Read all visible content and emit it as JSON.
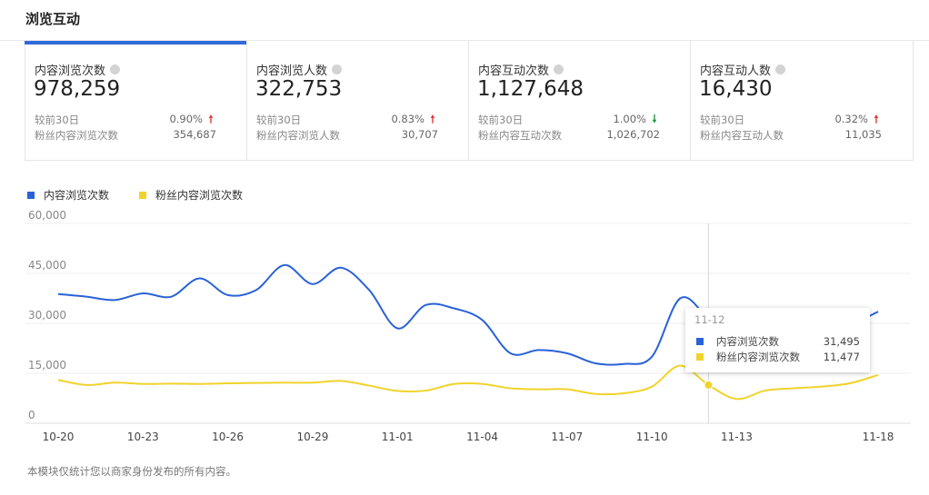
{
  "section_title": "浏览互动",
  "cards": [
    {
      "label": "内容浏览次数",
      "value": "978,259",
      "compare_label": "较前30日",
      "compare_value": "0.90%",
      "trend": "up",
      "sub_label": "粉丝内容浏览次数",
      "sub_value": "354,687"
    },
    {
      "label": "内容浏览人数",
      "value": "322,753",
      "compare_label": "较前30日",
      "compare_value": "0.83%",
      "trend": "up",
      "sub_label": "粉丝内容浏览人数",
      "sub_value": "30,707"
    },
    {
      "label": "内容互动次数",
      "value": "1,127,648",
      "compare_label": "较前30日",
      "compare_value": "1.00%",
      "trend": "down",
      "sub_label": "粉丝内容互动次数",
      "sub_value": "1,026,702"
    },
    {
      "label": "内容互动人数",
      "value": "16,430",
      "compare_label": "较前30日",
      "compare_value": "0.32%",
      "trend": "up",
      "sub_label": "粉丝内容互动人数",
      "sub_value": "11,035"
    }
  ],
  "colors": {
    "accent": "#2f6bd8",
    "series1": "#2962d8",
    "series2": "#f0d32a",
    "trend_up": "#e53935",
    "trend_down": "#1a9a3a"
  },
  "tooltip": {
    "title": "11-12",
    "rows": [
      {
        "name": "内容浏览次数",
        "value": "31,495"
      },
      {
        "name": "粉丝内容浏览次数",
        "value": "11,477"
      }
    ]
  },
  "footnote": "本模块仅统计您以商家身份发布的所有内容。",
  "chart_data": {
    "type": "line",
    "x": [
      "10-20",
      "10-21",
      "10-22",
      "10-23",
      "10-24",
      "10-25",
      "10-26",
      "10-27",
      "10-28",
      "10-29",
      "10-30",
      "10-31",
      "11-01",
      "11-02",
      "11-03",
      "11-04",
      "11-05",
      "11-06",
      "11-07",
      "11-08",
      "11-09",
      "11-10",
      "11-11",
      "11-12",
      "11-13",
      "11-14",
      "11-15",
      "11-16",
      "11-17",
      "11-18"
    ],
    "x_tick_labels": [
      "10-20",
      "10-23",
      "10-26",
      "10-29",
      "11-01",
      "11-04",
      "11-07",
      "11-10",
      "11-13",
      "11-18"
    ],
    "y_ticks": [
      "0",
      "15,000",
      "30,000",
      "45,000",
      "60,000"
    ],
    "ylim": [
      0,
      60000
    ],
    "grid": true,
    "legend_position": "top-left",
    "highlight_x": "11-12",
    "series": [
      {
        "name": "内容浏览次数",
        "color": "#2962d8",
        "values": [
          38800,
          38000,
          37000,
          39000,
          38000,
          43500,
          38500,
          40000,
          47500,
          41800,
          46700,
          40000,
          28500,
          35500,
          34500,
          31000,
          21000,
          22000,
          21000,
          18000,
          17800,
          20000,
          37500,
          31495,
          25000,
          24000,
          25000,
          27000,
          29500,
          33500
        ]
      },
      {
        "name": "粉丝内容浏览次数",
        "color": "#f0d32a",
        "values": [
          13000,
          11500,
          12200,
          11800,
          11900,
          11800,
          12000,
          12100,
          12200,
          12200,
          12700,
          11300,
          9700,
          9800,
          11800,
          11800,
          10500,
          10200,
          10200,
          8800,
          9000,
          11000,
          17300,
          11477,
          7300,
          9800,
          10500,
          11000,
          12000,
          14500
        ]
      }
    ]
  }
}
